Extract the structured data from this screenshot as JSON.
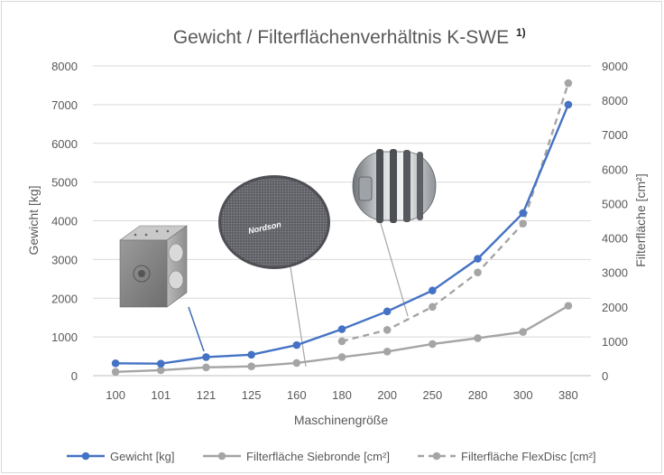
{
  "chart_data": {
    "type": "line",
    "title": "Gewicht / Filterflächenverhältnis K-SWE",
    "title_sup": "1)",
    "xlabel": "Maschinengröße",
    "ylabel_left": "Gewicht [kg]",
    "ylabel_right": "Filterfläche [cm²]",
    "categories": [
      "100",
      "101",
      "121",
      "125",
      "160",
      "180",
      "200",
      "250",
      "280",
      "300",
      "380"
    ],
    "ylim_left": [
      0,
      8000
    ],
    "yticks_left": [
      "0",
      "1000",
      "2000",
      "3000",
      "4000",
      "5000",
      "6000",
      "7000",
      "8000"
    ],
    "ylim_right": [
      0,
      9000
    ],
    "yticks_right": [
      "0",
      "1000",
      "2000",
      "3000",
      "4000",
      "5000",
      "6000",
      "7000",
      "8000",
      "9000"
    ],
    "grid": true,
    "legend_position": "bottom",
    "series": [
      {
        "name": "Gewicht [kg]",
        "axis": "left",
        "color": "#4472c4",
        "style": "solid",
        "values": [
          320,
          310,
          480,
          540,
          790,
          1200,
          1660,
          2200,
          3020,
          4200,
          7000
        ]
      },
      {
        "name": "Filterfläche Siebronde [cm²]",
        "axis": "right",
        "color": "#a5a5a5",
        "style": "solid",
        "values": [
          110,
          160,
          240,
          270,
          370,
          540,
          700,
          920,
          1090,
          1270,
          2030
        ]
      },
      {
        "name": "Filterfläche FlexDisc [cm²]",
        "axis": "right",
        "color": "#a5a5a5",
        "style": "dashed",
        "values": [
          null,
          null,
          null,
          null,
          null,
          1000,
          1330,
          2000,
          3000,
          4420,
          8500
        ]
      }
    ],
    "images": [
      {
        "name": "housing-block"
      },
      {
        "name": "screen-disc",
        "caption": "Nordson"
      },
      {
        "name": "flexdisc-filter"
      }
    ]
  }
}
